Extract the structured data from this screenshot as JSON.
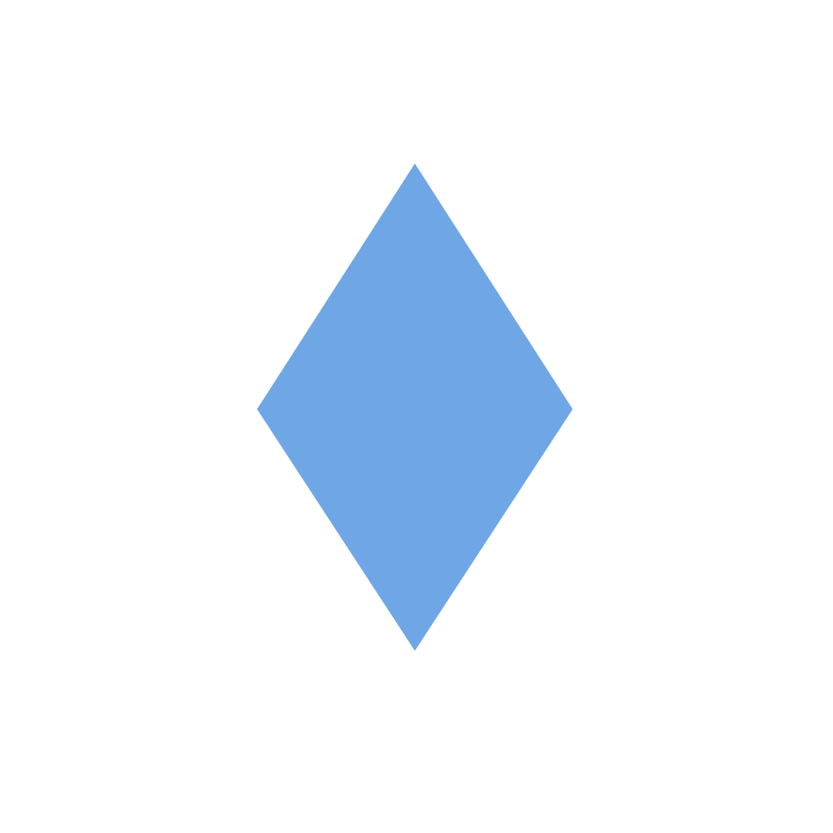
{
  "canvas": {
    "background_color": "#ffffff"
  },
  "shape": {
    "kind": "diamond-icon",
    "fill_color": "#6fa6e6"
  }
}
